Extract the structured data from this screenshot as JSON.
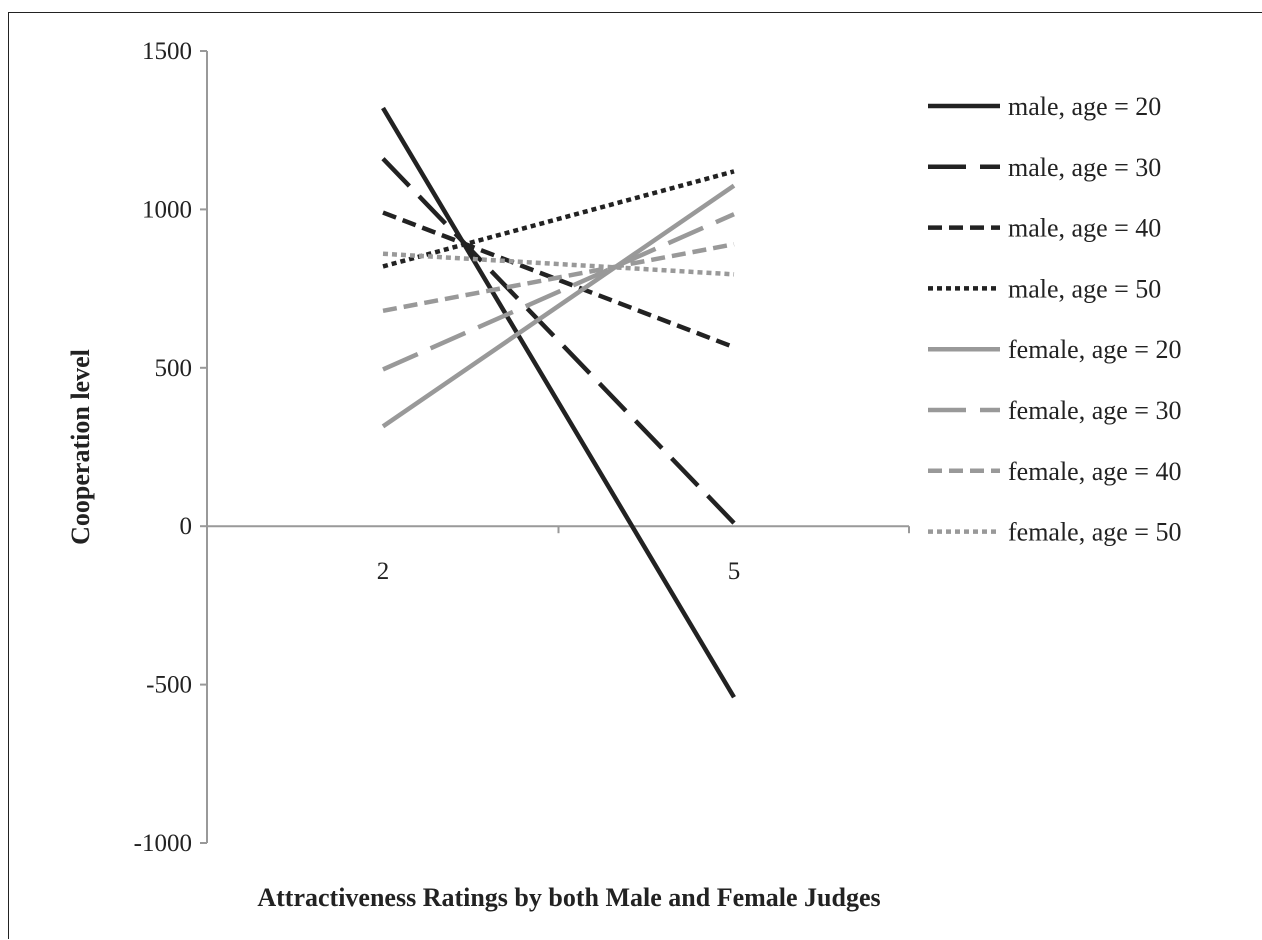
{
  "chart_data": {
    "type": "line",
    "title": "",
    "xlabel": "Attractiveness Ratings by both Male and Female Judges",
    "ylabel": "Cooperation level",
    "x_ticks": [
      "2",
      "5"
    ],
    "x": [
      2,
      5
    ],
    "ylim": [
      -1000,
      1500
    ],
    "y_ticks": [
      "1500",
      "1000",
      "500",
      "0",
      "-500",
      "-1000"
    ],
    "grid": false,
    "legend_position": "right",
    "series": [
      {
        "name": "male, age = 20",
        "values": [
          1320,
          -540
        ],
        "color": "#222222",
        "dash": "solid"
      },
      {
        "name": "male, age = 30",
        "values": [
          1160,
          10
        ],
        "color": "#222222",
        "dash": "longdash"
      },
      {
        "name": "male, age = 40",
        "values": [
          990,
          565
        ],
        "color": "#222222",
        "dash": "dash"
      },
      {
        "name": "male, age = 50",
        "values": [
          820,
          1120
        ],
        "color": "#222222",
        "dash": "dot"
      },
      {
        "name": "female, age = 20",
        "values": [
          315,
          1075
        ],
        "color": "#999999",
        "dash": "solid"
      },
      {
        "name": "female, age = 30",
        "values": [
          495,
          985
        ],
        "color": "#999999",
        "dash": "longdash"
      },
      {
        "name": "female, age = 40",
        "values": [
          680,
          890
        ],
        "color": "#999999",
        "dash": "dash"
      },
      {
        "name": "female, age = 50",
        "values": [
          860,
          795
        ],
        "color": "#999999",
        "dash": "dot"
      }
    ]
  }
}
